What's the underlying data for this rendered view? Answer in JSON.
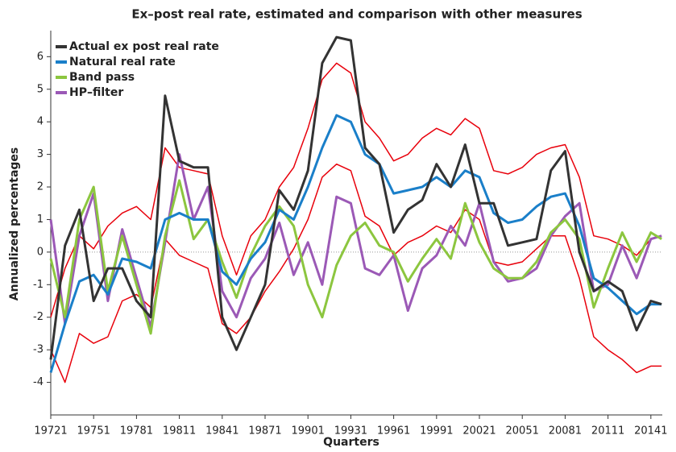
{
  "chart_data": {
    "type": "line",
    "title": "Ex–post real rate, estimated and comparison with other measures",
    "xlabel": "Quarters",
    "ylabel": "Annualized percentages",
    "x": [
      1972,
      1973,
      1974,
      1975,
      1976,
      1977,
      1978,
      1979,
      1980,
      1981,
      1982,
      1983,
      1984,
      1985,
      1986,
      1987,
      1988,
      1989,
      1990,
      1991,
      1992,
      1993,
      1994,
      1995,
      1996,
      1997,
      1998,
      1999,
      2000,
      2001,
      2002,
      2003,
      2004,
      2005,
      2006,
      2007,
      2008,
      2009,
      2010,
      2011,
      2012,
      2013,
      2014,
      2014.75
    ],
    "series": [
      {
        "name": "Actual ex post real rate",
        "color": "#333333",
        "values": [
          -3.3,
          0.2,
          1.3,
          -1.5,
          -0.5,
          -0.5,
          -1.5,
          -2.0,
          4.8,
          2.8,
          2.6,
          2.6,
          -2.0,
          -3.0,
          -2.0,
          -1.0,
          1.9,
          1.3,
          2.5,
          5.8,
          6.6,
          6.5,
          3.2,
          2.7,
          0.6,
          1.3,
          1.6,
          2.7,
          2.0,
          3.3,
          1.5,
          1.5,
          0.2,
          0.3,
          0.4,
          2.5,
          3.1,
          0.0,
          -1.2,
          -0.9,
          -1.2,
          -2.4,
          -1.5,
          -1.6
        ]
      },
      {
        "name": "Natural real rate",
        "color": "#1a7fc9",
        "values": [
          -3.7,
          -2.2,
          -0.9,
          -0.7,
          -1.3,
          -0.2,
          -0.3,
          -0.5,
          1.0,
          1.2,
          1.0,
          1.0,
          -0.6,
          -1.0,
          -0.2,
          0.3,
          1.3,
          1.0,
          2.0,
          3.2,
          4.2,
          4.0,
          3.0,
          2.7,
          1.8,
          1.9,
          2.0,
          2.3,
          2.0,
          2.5,
          2.3,
          1.2,
          0.9,
          1.0,
          1.4,
          1.7,
          1.8,
          0.8,
          -0.8,
          -1.1,
          -1.5,
          -1.9,
          -1.6,
          -1.6
        ]
      },
      {
        "name": "Band pass",
        "color": "#8cc63f",
        "values": [
          -0.2,
          -2.0,
          1.0,
          2.0,
          -1.2,
          0.5,
          -1.0,
          -2.5,
          0.5,
          2.2,
          0.4,
          1.0,
          -0.3,
          -1.4,
          -0.1,
          0.8,
          1.4,
          0.8,
          -1.0,
          -2.0,
          -0.4,
          0.5,
          0.9,
          0.2,
          0.0,
          -0.9,
          -0.2,
          0.4,
          -0.2,
          1.5,
          0.3,
          -0.5,
          -0.8,
          -0.8,
          -0.3,
          0.6,
          1.0,
          0.4,
          -1.7,
          -0.5,
          0.6,
          -0.3,
          0.6,
          0.4
        ]
      },
      {
        "name": "HP–filter",
        "color": "#9b59b6",
        "values": [
          1.0,
          -2.2,
          0.5,
          1.8,
          -1.5,
          0.7,
          -0.8,
          -2.3,
          0.3,
          3.0,
          1.0,
          2.0,
          -1.2,
          -2.0,
          -0.8,
          -0.2,
          0.9,
          -0.7,
          0.3,
          -1.0,
          1.7,
          1.5,
          -0.5,
          -0.7,
          -0.1,
          -1.8,
          -0.5,
          -0.1,
          0.8,
          0.2,
          1.5,
          -0.3,
          -0.9,
          -0.8,
          -0.5,
          0.5,
          1.1,
          1.5,
          -1.2,
          -1.0,
          0.2,
          -0.8,
          0.4,
          0.5
        ]
      }
    ],
    "bands": [
      {
        "color": "#e8000b",
        "values": [
          -2.0,
          -0.5,
          0.5,
          0.1,
          0.8,
          1.2,
          1.4,
          1.0,
          3.2,
          2.6,
          2.5,
          2.4,
          0.5,
          -0.7,
          0.5,
          1.0,
          2.0,
          2.6,
          3.8,
          5.3,
          5.8,
          5.5,
          4.0,
          3.5,
          2.8,
          3.0,
          3.5,
          3.8,
          3.6,
          4.1,
          3.8,
          2.5,
          2.4,
          2.6,
          3.0,
          3.2,
          3.3,
          2.3,
          0.5,
          0.4,
          0.2,
          -0.1,
          0.4,
          0.5
        ]
      },
      {
        "color": "#e8000b",
        "values": [
          -3.0,
          -4.0,
          -2.5,
          -2.8,
          -2.6,
          -1.5,
          -1.3,
          -1.7,
          0.4,
          -0.1,
          -0.3,
          -0.5,
          -2.2,
          -2.5,
          -2.0,
          -1.2,
          -0.6,
          0.1,
          1.0,
          2.3,
          2.7,
          2.5,
          1.1,
          0.8,
          -0.1,
          0.3,
          0.5,
          0.8,
          0.6,
          1.3,
          1.0,
          -0.3,
          -0.4,
          -0.3,
          0.1,
          0.5,
          0.5,
          -0.8,
          -2.6,
          -3.0,
          -3.3,
          -3.7,
          -3.5,
          -3.5
        ]
      }
    ],
    "xlim": [
      1972,
      2014.8
    ],
    "xticks": [
      {
        "value": 1972,
        "label": "19721"
      },
      {
        "value": 1975,
        "label": "19751"
      },
      {
        "value": 1978,
        "label": "19781"
      },
      {
        "value": 1981,
        "label": "19811"
      },
      {
        "value": 1984,
        "label": "19841"
      },
      {
        "value": 1987,
        "label": "19871"
      },
      {
        "value": 1990,
        "label": "19901"
      },
      {
        "value": 1993,
        "label": "19931"
      },
      {
        "value": 1996,
        "label": "19961"
      },
      {
        "value": 1999,
        "label": "19991"
      },
      {
        "value": 2002,
        "label": "20021"
      },
      {
        "value": 2005,
        "label": "20051"
      },
      {
        "value": 2008,
        "label": "20081"
      },
      {
        "value": 2011,
        "label": "20111"
      },
      {
        "value": 2014,
        "label": "20141"
      }
    ],
    "ylim": [
      -5,
      6.8
    ],
    "yticks": [
      -4,
      -3,
      -2,
      -1,
      0,
      1,
      2,
      3,
      4,
      5,
      6
    ],
    "zero_line": true,
    "legend": "upper left"
  }
}
